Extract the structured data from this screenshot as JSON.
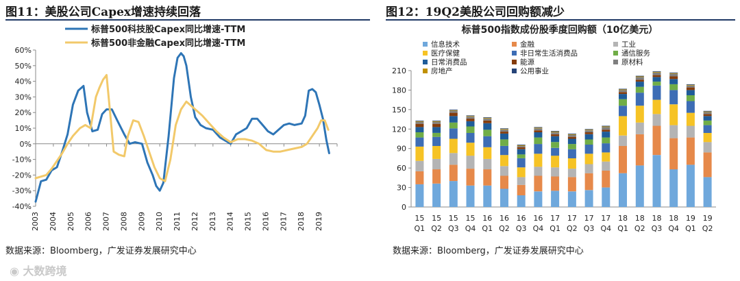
{
  "left": {
    "title": "图11：美股公司Capex增速持续回落",
    "source": "数据来源：Bloomberg，广发证券发展研究中心"
  },
  "right": {
    "title": "图12：19Q2美股公司回购额减少",
    "source": "数据来源：Bloomberg，广发证券发展研究中心"
  },
  "watermark": "大数跨境",
  "colors": {
    "rule": "#1f3864",
    "series_blue": "#2e75b6",
    "series_gold": "#f2c96a"
  },
  "chart_data": [
    {
      "type": "line",
      "title": "",
      "legend_position": "top-left",
      "ylim": [
        -0.4,
        0.6
      ],
      "yticks": [
        -0.4,
        -0.3,
        -0.2,
        -0.1,
        0,
        0.1,
        0.2,
        0.3,
        0.4,
        0.5,
        0.6
      ],
      "ytick_labels": [
        "-40%",
        "-30%",
        "-20%",
        "-10%",
        "0%",
        "10%",
        "20%",
        "30%",
        "40%",
        "50%",
        "60%"
      ],
      "xlim": [
        2003,
        2020
      ],
      "xticks": [
        "2003",
        "2004",
        "2005",
        "2006",
        "2007",
        "2008",
        "2009",
        "2010",
        "2011",
        "2012",
        "2013",
        "2014",
        "2015",
        "2016",
        "2017",
        "2018",
        "2019"
      ],
      "series": [
        {
          "name": "标普500科技股Capex同比增速-TTM",
          "color": "#2e75b6",
          "x": [
            2003.0,
            2003.3,
            2003.6,
            2003.9,
            2004.2,
            2004.5,
            2004.8,
            2005.1,
            2005.4,
            2005.7,
            2005.9,
            2006.2,
            2006.5,
            2006.75,
            2007.0,
            2007.3,
            2007.6,
            2008.0,
            2008.3,
            2008.6,
            2009.0,
            2009.3,
            2009.6,
            2009.8,
            2010.0,
            2010.2,
            2010.5,
            2010.8,
            2011.0,
            2011.2,
            2011.35,
            2011.5,
            2011.75,
            2012.0,
            2012.3,
            2012.6,
            2013.0,
            2013.4,
            2013.7,
            2014.0,
            2014.3,
            2014.6,
            2014.9,
            2015.2,
            2015.5,
            2015.8,
            2016.1,
            2016.4,
            2016.7,
            2017.0,
            2017.3,
            2017.6,
            2018.0,
            2018.2,
            2018.4,
            2018.6,
            2018.8,
            2019.0,
            2019.2,
            2019.4,
            2019.55
          ],
          "y": [
            -0.37,
            -0.24,
            -0.23,
            -0.17,
            -0.15,
            -0.05,
            0.06,
            0.25,
            0.34,
            0.37,
            0.2,
            0.08,
            0.09,
            0.19,
            0.22,
            0.22,
            0.15,
            0.06,
            0.0,
            0.01,
            0.0,
            -0.12,
            -0.2,
            -0.27,
            -0.3,
            -0.25,
            0.05,
            0.42,
            0.55,
            0.58,
            0.56,
            0.5,
            0.3,
            0.17,
            0.12,
            0.1,
            0.09,
            0.04,
            0.02,
            0.0,
            0.06,
            0.08,
            0.1,
            0.16,
            0.16,
            0.12,
            0.08,
            0.06,
            0.09,
            0.12,
            0.13,
            0.12,
            0.13,
            0.18,
            0.34,
            0.35,
            0.33,
            0.25,
            0.16,
            0.02,
            -0.06
          ]
        },
        {
          "name": "标普500非金融Capex同比增速-TTM",
          "color": "#f2c96a",
          "x": [
            2003.0,
            2003.3,
            2003.6,
            2003.9,
            2004.2,
            2004.5,
            2004.8,
            2005.1,
            2005.5,
            2005.8,
            2006.1,
            2006.4,
            2006.6,
            2006.8,
            2007.0,
            2007.2,
            2007.4,
            2007.7,
            2008.0,
            2008.2,
            2008.5,
            2008.8,
            2009.1,
            2009.4,
            2009.7,
            2010.0,
            2010.3,
            2010.6,
            2010.9,
            2011.2,
            2011.5,
            2011.8,
            2012.1,
            2012.4,
            2012.8,
            2013.2,
            2013.6,
            2014.0,
            2014.4,
            2014.8,
            2015.2,
            2015.6,
            2016.0,
            2016.4,
            2016.8,
            2017.2,
            2017.6,
            2018.0,
            2018.3,
            2018.6,
            2018.9,
            2019.1,
            2019.3,
            2019.5
          ],
          "y": [
            -0.22,
            -0.21,
            -0.2,
            -0.16,
            -0.11,
            -0.06,
            0.0,
            0.05,
            0.1,
            0.12,
            0.1,
            0.3,
            0.36,
            0.41,
            0.44,
            0.2,
            -0.05,
            -0.07,
            -0.08,
            0.05,
            0.15,
            0.14,
            0.05,
            -0.05,
            -0.15,
            -0.22,
            -0.24,
            -0.1,
            0.12,
            0.22,
            0.27,
            0.24,
            0.21,
            0.18,
            0.13,
            0.08,
            0.04,
            0.01,
            0.03,
            0.03,
            0.02,
            0.0,
            -0.04,
            -0.05,
            -0.05,
            -0.04,
            -0.03,
            -0.02,
            0.0,
            0.05,
            0.1,
            0.15,
            0.15,
            0.09
          ]
        }
      ]
    },
    {
      "type": "bar",
      "stacked": true,
      "title": "标普500指数成份股季度回购额（10亿美元）",
      "legend_position": "top-left",
      "ylim": [
        0,
        210
      ],
      "yticks": [
        0,
        30,
        60,
        90,
        120,
        150,
        180,
        210
      ],
      "categories": [
        "15 Q1",
        "15 Q2",
        "15 Q3",
        "15 Q4",
        "16 Q1",
        "16 Q2",
        "16 Q3",
        "16 Q4",
        "17 Q1",
        "17 Q2",
        "17 Q3",
        "17 Q4",
        "18 Q1",
        "18 Q2",
        "18 Q3",
        "18 Q4",
        "19 Q1",
        "19 Q2"
      ],
      "series": [
        {
          "name": "信息技术",
          "color": "#6fa8dc",
          "values": [
            35,
            36,
            40,
            33,
            33,
            28,
            18,
            24,
            25,
            24,
            26,
            30,
            52,
            64,
            80,
            58,
            65,
            46
          ]
        },
        {
          "name": "金融",
          "color": "#e6894a",
          "values": [
            20,
            22,
            25,
            26,
            25,
            20,
            16,
            24,
            22,
            22,
            26,
            26,
            42,
            48,
            45,
            48,
            42,
            38
          ]
        },
        {
          "name": "工业",
          "color": "#b4b4b4",
          "values": [
            16,
            16,
            18,
            20,
            16,
            15,
            12,
            14,
            14,
            13,
            14,
            14,
            16,
            18,
            18,
            20,
            18,
            16
          ]
        },
        {
          "name": "医疗保健",
          "color": "#f6c325",
          "values": [
            22,
            20,
            22,
            20,
            18,
            17,
            15,
            20,
            18,
            16,
            16,
            14,
            30,
            26,
            22,
            32,
            20,
            14
          ]
        },
        {
          "name": "非日常生活消费品",
          "color": "#3d6db5",
          "values": [
            14,
            14,
            16,
            15,
            17,
            14,
            14,
            15,
            12,
            14,
            14,
            14,
            16,
            20,
            22,
            22,
            18,
            12
          ]
        },
        {
          "name": "通信服务",
          "color": "#70ad47",
          "values": [
            8,
            6,
            9,
            10,
            10,
            10,
            6,
            10,
            9,
            8,
            8,
            9,
            10,
            9,
            6,
            9,
            9,
            7
          ]
        },
        {
          "name": "日常消费品",
          "color": "#1f5c99",
          "values": [
            8,
            9,
            10,
            8,
            10,
            9,
            8,
            8,
            9,
            8,
            8,
            9,
            8,
            8,
            7,
            8,
            8,
            7
          ]
        },
        {
          "name": "能源",
          "color": "#843c0c",
          "values": [
            5,
            5,
            5,
            4,
            4,
            3,
            3,
            3,
            3,
            3,
            3,
            3,
            3,
            3,
            3,
            4,
            4,
            3
          ]
        },
        {
          "name": "原材料",
          "color": "#7f7f7f",
          "values": [
            3,
            3,
            3,
            3,
            3,
            3,
            2,
            3,
            3,
            3,
            3,
            4,
            3,
            4,
            4,
            4,
            3,
            3
          ]
        },
        {
          "name": "房地产",
          "color": "#c09000",
          "values": [
            1,
            1,
            1,
            1,
            1,
            1,
            1,
            1,
            1,
            1,
            1,
            1,
            1,
            1,
            1,
            1,
            1,
            1
          ]
        },
        {
          "name": "公用事业",
          "color": "#264478",
          "values": [
            1,
            1,
            1,
            1,
            1,
            1,
            1,
            1,
            1,
            1,
            1,
            1,
            1,
            1,
            1,
            1,
            1,
            1
          ]
        }
      ]
    }
  ]
}
